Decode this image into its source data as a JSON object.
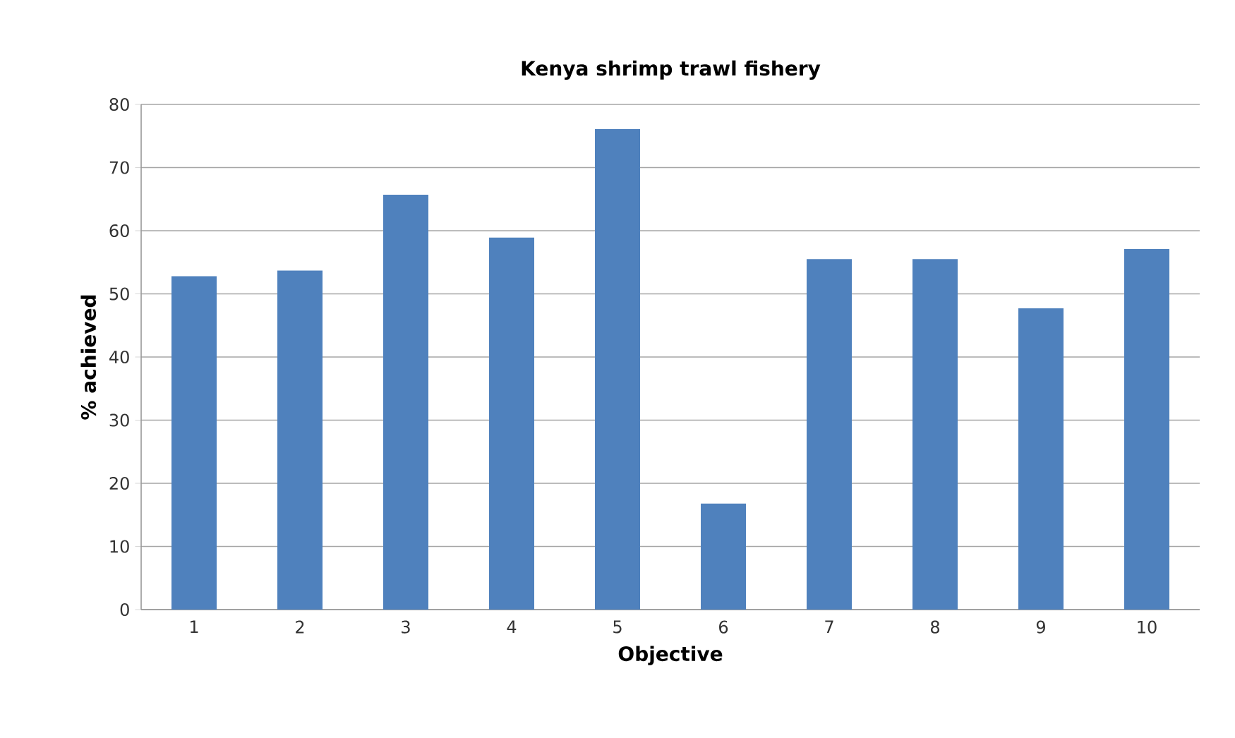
{
  "chart_data": {
    "type": "bar",
    "title": "Kenya shrimp trawl fishery",
    "xlabel": "Objective",
    "ylabel": "% achieved",
    "categories": [
      "1",
      "2",
      "3",
      "4",
      "5",
      "6",
      "7",
      "8",
      "9",
      "10"
    ],
    "values": [
      52.8,
      53.7,
      65.7,
      58.9,
      76.1,
      16.8,
      55.5,
      55.5,
      47.7,
      57.1
    ],
    "color": "#4f81bd",
    "ylim": [
      0,
      80
    ],
    "yticks": [
      0,
      10,
      20,
      30,
      40,
      50,
      60,
      70,
      80
    ],
    "grid": "y"
  }
}
